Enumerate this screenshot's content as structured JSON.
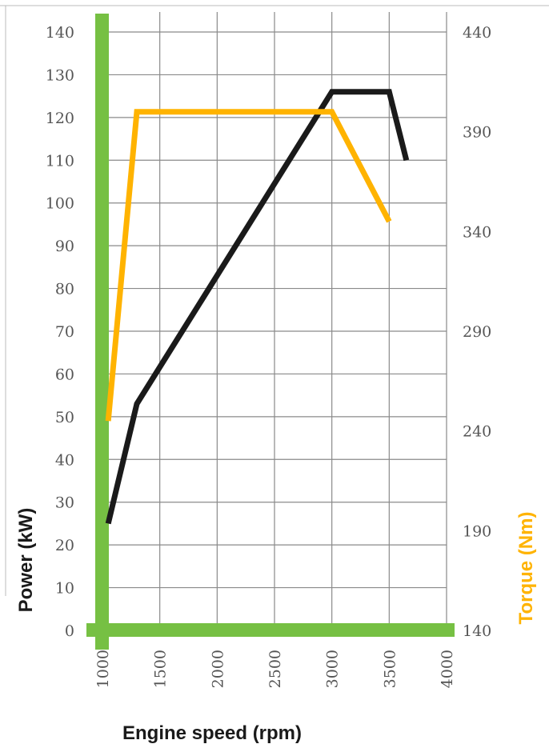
{
  "chart_data": {
    "type": "line",
    "xlabel": "Engine speed (rpm)",
    "ylabel_left": "Power (kW)",
    "ylabel_right": "Torque (Nm)",
    "x_ticks": [
      1000,
      1500,
      2000,
      2500,
      3000,
      3500,
      4000
    ],
    "y_left_ticks": [
      0,
      10,
      20,
      30,
      40,
      50,
      60,
      70,
      80,
      90,
      100,
      110,
      120,
      130,
      140
    ],
    "y_right_ticks": [
      140,
      190,
      240,
      290,
      340,
      390,
      440
    ],
    "xlim": [
      1000,
      4000
    ],
    "ylim_left": [
      0,
      140
    ],
    "ylim_right": [
      140,
      440
    ],
    "grid": true,
    "series": [
      {
        "name": "Power (kW)",
        "axis": "left",
        "color": "#1a1a1a",
        "x": [
          1050,
          1300,
          3000,
          3500,
          3650
        ],
        "y": [
          25,
          53,
          126,
          126,
          110
        ]
      },
      {
        "name": "Torque (Nm)",
        "axis": "right",
        "color": "#ffb300",
        "x": [
          1050,
          1300,
          3000,
          3500
        ],
        "y": [
          245,
          400,
          400,
          345
        ]
      }
    ],
    "axis_color": "#76c043"
  }
}
